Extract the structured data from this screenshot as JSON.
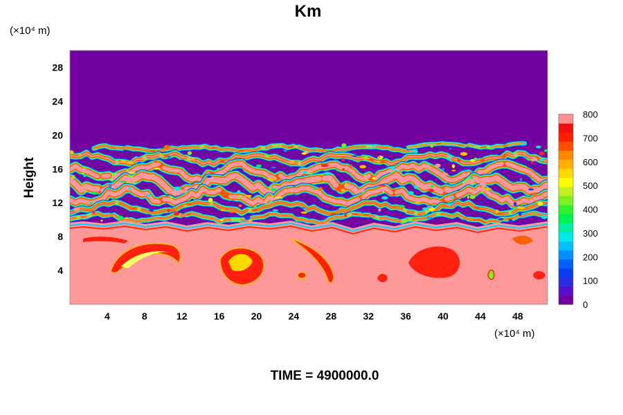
{
  "chart_data": {
    "type": "heatmap",
    "title": "Km",
    "ylabel": "Height",
    "x_unit_label": "(×10⁴ m)",
    "y_unit_label": "(×10⁴ m)",
    "xlim": [
      0,
      51.2
    ],
    "ylim": [
      0,
      30
    ],
    "x_ticks": [
      4,
      8,
      12,
      16,
      20,
      24,
      28,
      32,
      36,
      40,
      44,
      48
    ],
    "y_ticks": [
      4,
      8,
      12,
      16,
      20,
      24,
      28
    ],
    "colorbar": {
      "min": 0,
      "max": 800,
      "ticks": [
        0,
        100,
        200,
        300,
        400,
        500,
        600,
        700,
        800
      ],
      "colors": [
        "#7000a0",
        "#5a0fc8",
        "#2d2de0",
        "#0a3cf0",
        "#0060f8",
        "#0090ff",
        "#00c0ff",
        "#00e8e8",
        "#00f0a0",
        "#00f050",
        "#30f030",
        "#80f020",
        "#c0f020",
        "#ffff00",
        "#ffd800",
        "#ffb000",
        "#ff8800",
        "#ff5000",
        "#ff2000",
        "#ee1010",
        "#ff9090"
      ]
    },
    "regions": [
      {
        "description": "upper layer",
        "y_range": [
          19,
          30
        ],
        "value": 0
      },
      {
        "description": "turbulent bands",
        "y_range": [
          9.5,
          19
        ],
        "value_range": [
          0,
          800
        ]
      },
      {
        "description": "lower layer",
        "y_range": [
          0,
          9.5
        ],
        "value": 800
      }
    ],
    "footer": "TIME = 4900000.0"
  }
}
